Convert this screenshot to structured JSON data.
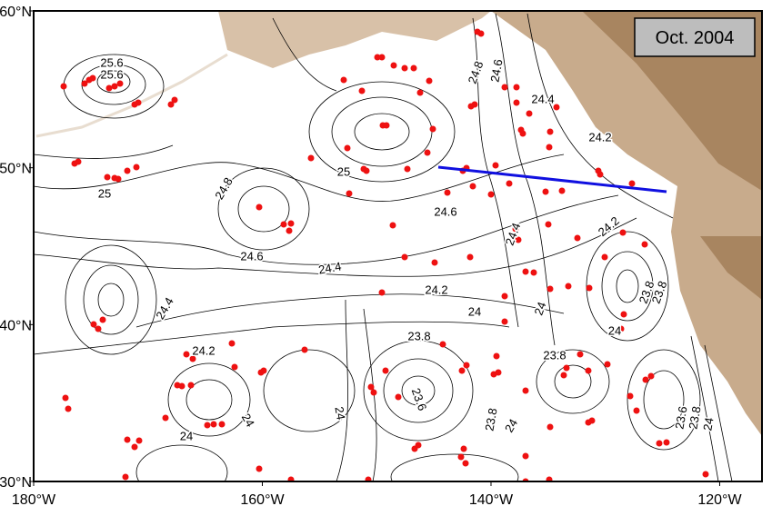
{
  "map": {
    "date_label": "Oct. 2004",
    "xticks": [
      {
        "value": -180,
        "label": "180°W"
      },
      {
        "value": -160,
        "label": "160°W"
      },
      {
        "value": -140,
        "label": "140°W"
      },
      {
        "value": -120,
        "label": "120°W"
      }
    ],
    "yticks": [
      {
        "value": 30,
        "label": "30°N"
      },
      {
        "value": 40,
        "label": "40°N"
      },
      {
        "value": 50,
        "label": "50°N"
      },
      {
        "value": 60,
        "label": "60°N"
      }
    ],
    "xlim": [
      -180,
      -116.3
    ],
    "ylim": [
      30,
      60
    ],
    "contour_labels": [
      "25.6",
      "25.6",
      "24.8",
      "24.6",
      "24.4",
      "24.2",
      "25",
      "25",
      "24.8",
      "24.6",
      "24.6",
      "24.4",
      "24.4",
      "24.2",
      "24",
      "24",
      "24.2",
      "23.8",
      "23.8",
      "24",
      "24.2",
      "23.8",
      "23.8",
      "23.6",
      "24",
      "23.8",
      "24",
      "24",
      "24",
      "23.6",
      "23.8",
      "24",
      "24.4"
    ]
  }
}
